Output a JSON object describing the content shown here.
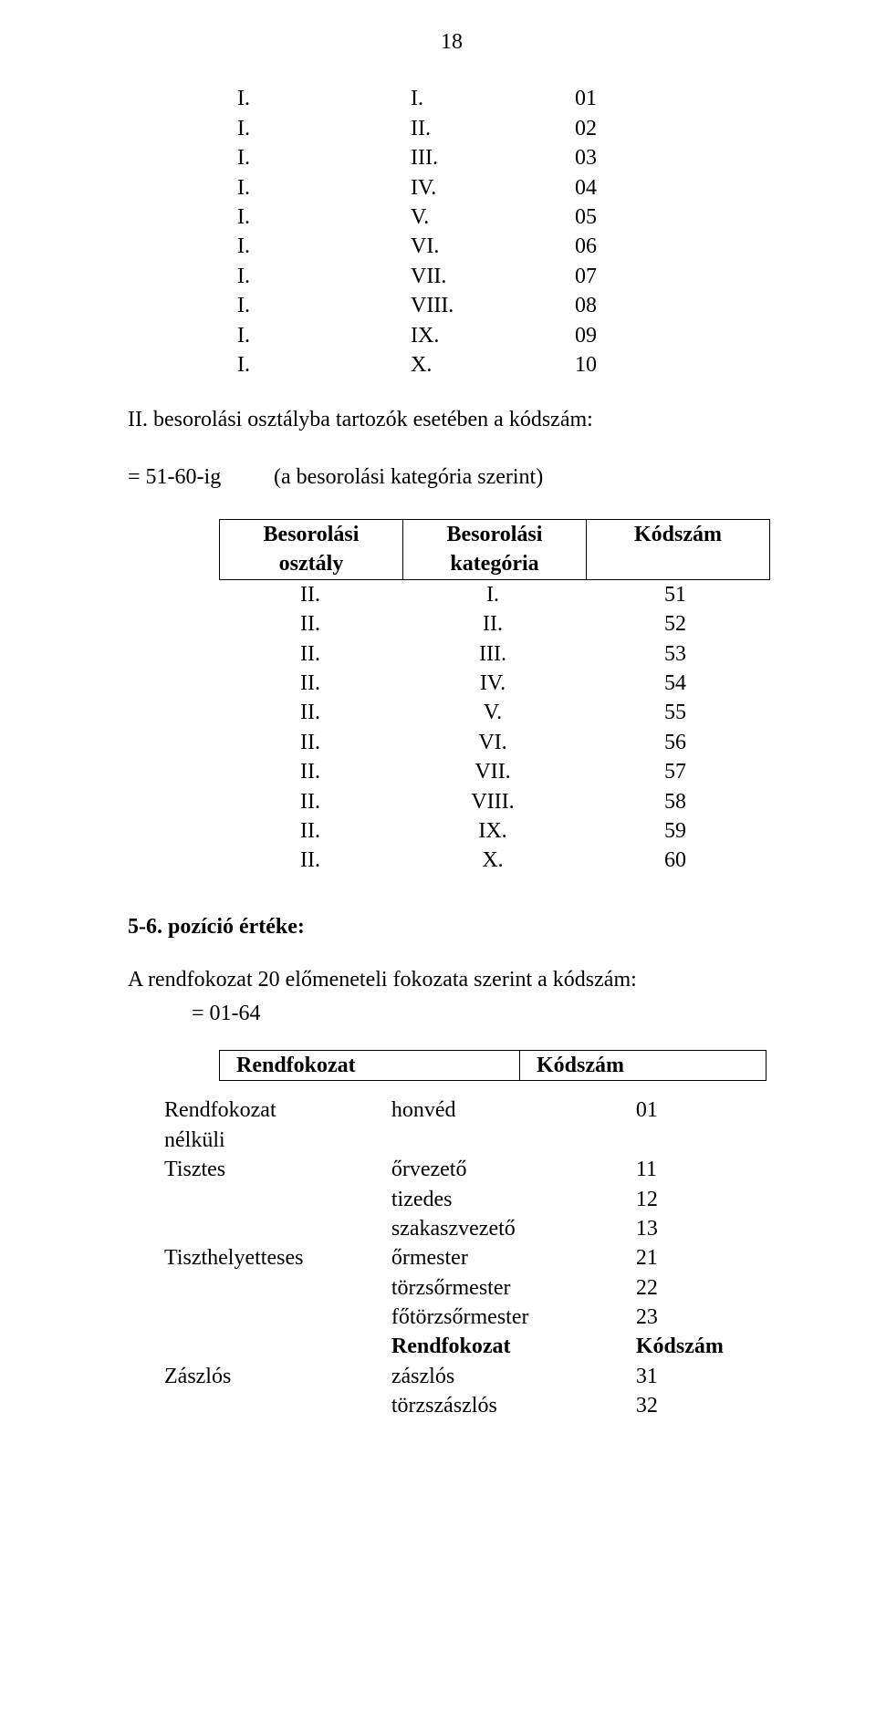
{
  "page_number": "18",
  "table1": {
    "rows": [
      [
        "I.",
        "I.",
        "01"
      ],
      [
        "I.",
        "II.",
        "02"
      ],
      [
        "I.",
        "III.",
        "03"
      ],
      [
        "I.",
        "IV.",
        "04"
      ],
      [
        "I.",
        "V.",
        "05"
      ],
      [
        "I.",
        "VI.",
        "06"
      ],
      [
        "I.",
        "VII.",
        "07"
      ],
      [
        "I.",
        "VIII.",
        "08"
      ],
      [
        "I.",
        "IX.",
        "09"
      ],
      [
        "I.",
        "X.",
        "10"
      ]
    ]
  },
  "para1_line1": "II. besorolási osztályba tartozók esetében a kódszám:",
  "para1_def_key": "= 51-60-ig",
  "para1_def_val": "(a besorolási kategória szerint)",
  "table2": {
    "header_c1a": "Besorolási",
    "header_c1b": "osztály",
    "header_c2a": "Besorolási",
    "header_c2b": "kategória",
    "header_c3": "Kódszám",
    "rows": [
      [
        "II.",
        "I.",
        "51"
      ],
      [
        "II.",
        "II.",
        "52"
      ],
      [
        "II.",
        "III.",
        "53"
      ],
      [
        "II.",
        "IV.",
        "54"
      ],
      [
        "II.",
        "V.",
        "55"
      ],
      [
        "II.",
        "VI.",
        "56"
      ],
      [
        "II.",
        "VII.",
        "57"
      ],
      [
        "II.",
        "VIII.",
        "58"
      ],
      [
        "II.",
        "IX.",
        "59"
      ],
      [
        "II.",
        "X.",
        "60"
      ]
    ]
  },
  "section_heading": "5-6. pozíció értéke:",
  "para2_line1": "A rendfokozat 20 előmeneteli fokozata szerint a kódszám:",
  "para2_line2": "= 01-64",
  "table3": {
    "header_c1": "Rendfokozat",
    "header_c2": "Kódszám",
    "groups": [
      {
        "group_label_a": "Rendfokozat",
        "group_label_b": "nélküli",
        "rows": [
          {
            "c2": "honvéd",
            "c3": "01",
            "bold": false
          }
        ]
      },
      {
        "group_label_a": "Tisztes",
        "rows": [
          {
            "c2": "őrvezető",
            "c3": "11",
            "bold": false
          },
          {
            "c2": "tizedes",
            "c3": "12",
            "bold": false
          },
          {
            "c2": "szakaszvezető",
            "c3": "13",
            "bold": false
          }
        ]
      },
      {
        "group_label_a": "Tiszthelyetteses",
        "rows": [
          {
            "c2": "őrmester",
            "c3": "21",
            "bold": false
          },
          {
            "c2": "törzsőrmester",
            "c3": "22",
            "bold": false
          },
          {
            "c2": "főtörzsőrmester",
            "c3": "23",
            "bold": false
          },
          {
            "c2": "Rendfokozat",
            "c3": "Kódszám",
            "bold": true
          }
        ]
      },
      {
        "group_label_a": "Zászlós",
        "rows": [
          {
            "c2": "zászlós",
            "c3": "31",
            "bold": false
          },
          {
            "c2": "törzszászlós",
            "c3": "32",
            "bold": false
          }
        ]
      }
    ]
  }
}
